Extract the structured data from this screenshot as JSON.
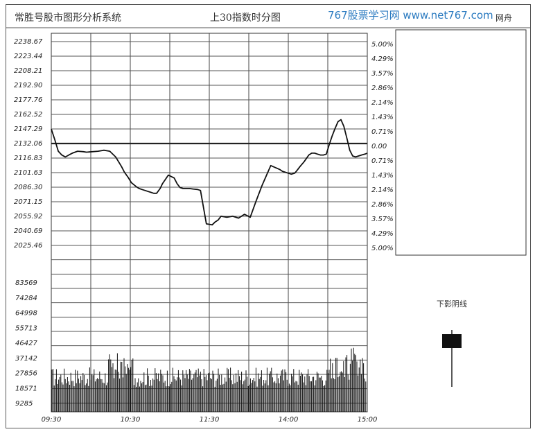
{
  "header": {
    "system_title": "常胜号股市图形分析系统",
    "index_title": "上30指数时分图",
    "watermark": "767股票学习网 www.net767.com",
    "watermark_short": "网舟"
  },
  "side_annotation": {
    "label": "下影阴线",
    "candle": {
      "type": "bearish",
      "open": 0.0,
      "close": -1.0,
      "high": 0.3,
      "low": -6.0
    }
  },
  "chart_data": [
    {
      "type": "line",
      "title": "",
      "x_ticks": [
        "09:30",
        "10:30",
        "11:30",
        "14:00",
        "15:00"
      ],
      "price_ticks": [
        "2238.67",
        "2223.44",
        "2208.21",
        "2192.90",
        "2177.76",
        "2162.52",
        "2147.29",
        "2132.06",
        "2116.83",
        "2101.63",
        "2086.30",
        "2071.15",
        "2055.92",
        "2040.69",
        "2025.46"
      ],
      "pct_ticks": [
        "5.00%",
        "4.29%",
        "3.57%",
        "2.86%",
        "2.14%",
        "1.43%",
        "0.71%",
        "0.00",
        "0.71%",
        "1.43%",
        "2.14%",
        "2.86%",
        "3.57%",
        "4.29%",
        "5.00%"
      ],
      "ylim": [
        2025.46,
        2238.67
      ],
      "reference_price": 2132.06,
      "x": [
        0,
        6,
        12,
        18,
        24,
        30,
        36,
        45,
        55,
        60,
        70,
        80,
        90,
        100,
        110,
        120,
        125,
        131,
        137,
        145,
        150,
        155,
        160,
        170,
        175,
        180,
        186,
        190,
        200,
        210,
        215,
        220,
        225,
        230,
        236,
        242,
        250,
        255,
        265,
        275,
        280,
        285,
        290,
        300,
        310,
        320,
        330,
        340,
        350,
        360,
        375,
        390,
        395,
        400,
        405,
        410,
        416,
        420,
        425,
        432,
        440,
        445,
        450,
        455,
        460,
        465,
        470,
        475,
        480,
        485,
        490,
        495,
        500,
        505,
        510,
        515,
        520,
        525,
        530,
        536,
        540
      ],
      "series": [
        {
          "values": [
            2147.3,
            2136,
            2124,
            2120,
            2118,
            2120,
            2122,
            2124,
            2123.5,
            2123,
            2123.5,
            2124,
            2125,
            2124,
            2118,
            2108,
            2102,
            2097,
            2091,
            2087,
            2085,
            2084,
            2083,
            2081,
            2080,
            2080,
            2085,
            2090,
            2099,
            2096,
            2090,
            2086,
            2085,
            2085,
            2085,
            2084.5,
            2084,
            2083,
            2048,
            2047,
            2050,
            2052,
            2056,
            2055,
            2056,
            2054,
            2058,
            2055,
            2072,
            2088,
            2109,
            2105,
            2103,
            2102,
            2101,
            2100,
            2101,
            2104,
            2108,
            2113,
            2120,
            2122,
            2122,
            2121,
            2120,
            2120,
            2121,
            2131,
            2140,
            2148,
            2155,
            2157,
            2150,
            2138,
            2125,
            2119,
            2118,
            2119,
            2120,
            2121,
            2122
          ]
        }
      ]
    },
    {
      "type": "bar",
      "title": "",
      "y_ticks": [
        "83569",
        "74284",
        "64998",
        "55713",
        "46427",
        "37142",
        "27856",
        "18571",
        "9285"
      ],
      "ylim": [
        0,
        92854
      ]
    }
  ]
}
